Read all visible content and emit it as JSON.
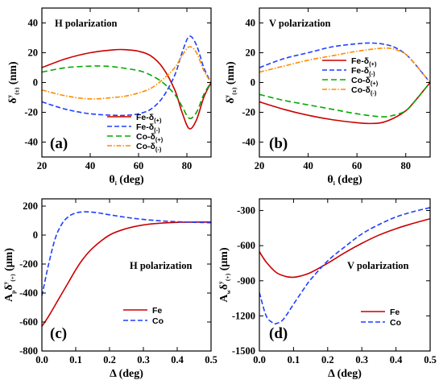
{
  "chart_data": [
    {
      "type": "line",
      "panel_label": "(a)",
      "annotation": "H polarization",
      "xlabel": "θi (deg)",
      "ylabel": "δy(±) (nm)",
      "xlim": [
        20,
        90
      ],
      "ylim": [
        -50,
        50
      ],
      "xticks": [
        20,
        40,
        60,
        80
      ],
      "yticks": [
        40,
        20,
        0,
        -20,
        -40
      ],
      "legend_position": "bottom-right",
      "series": [
        {
          "name": "Fe-δ(+)",
          "color": "#cc0000",
          "dash": "solid",
          "x": [
            20,
            30,
            40,
            50,
            55,
            60,
            65,
            70,
            75,
            78,
            81,
            84,
            87,
            90
          ],
          "y": [
            10,
            16,
            20,
            22,
            22,
            21,
            18,
            10,
            -5,
            -20,
            -31,
            -25,
            -10,
            0
          ]
        },
        {
          "name": "Fe-δ(-)",
          "color": "#1f3fff",
          "dash": "dashed",
          "x": [
            20,
            30,
            40,
            50,
            55,
            60,
            65,
            70,
            75,
            78,
            81,
            84,
            87,
            90
          ],
          "y": [
            -13,
            -18,
            -21,
            -22,
            -22,
            -21,
            -18,
            -10,
            5,
            20,
            31,
            25,
            10,
            0
          ]
        },
        {
          "name": "Co-δ(+)",
          "color": "#00aa00",
          "dash": "dash",
          "x": [
            20,
            30,
            40,
            45,
            50,
            60,
            65,
            70,
            75,
            78,
            81,
            84,
            87,
            90
          ],
          "y": [
            7,
            10,
            11,
            11,
            10.5,
            8,
            5,
            0,
            -8,
            -16,
            -24,
            -20,
            -8,
            0
          ]
        },
        {
          "name": "Co-δ(-)",
          "color": "#ff8c00",
          "dash": "dashdot",
          "x": [
            20,
            30,
            40,
            50,
            55,
            60,
            65,
            70,
            75,
            78,
            81,
            84,
            87,
            90
          ],
          "y": [
            -5,
            -9,
            -11,
            -10,
            -9,
            -7,
            -4,
            2,
            10,
            18,
            24,
            20,
            8,
            0
          ]
        }
      ]
    },
    {
      "type": "line",
      "panel_label": "(b)",
      "annotation": "V polarization",
      "xlabel": "θi (deg)",
      "ylabel": "δy(±) (nm)",
      "xlim": [
        20,
        90
      ],
      "ylim": [
        -50,
        50
      ],
      "xticks": [
        20,
        40,
        60,
        80
      ],
      "yticks": [
        40,
        20,
        0,
        -20,
        -40
      ],
      "legend_position": "upper-right",
      "series": [
        {
          "name": "Fe-δ(+)",
          "color": "#cc0000",
          "dash": "solid",
          "x": [
            20,
            30,
            40,
            50,
            60,
            65,
            70,
            75,
            80,
            84,
            87,
            90
          ],
          "y": [
            -13,
            -18,
            -22,
            -25,
            -27,
            -27.5,
            -27,
            -24,
            -19,
            -12,
            -6,
            0
          ]
        },
        {
          "name": "Fe-δ(-)",
          "color": "#1f3fff",
          "dash": "dashed",
          "x": [
            20,
            30,
            40,
            50,
            60,
            65,
            70,
            75,
            80,
            84,
            87,
            90
          ],
          "y": [
            10,
            16,
            20,
            24,
            26,
            26.5,
            26,
            24,
            19,
            12,
            6,
            0
          ]
        },
        {
          "name": "Co-δ(+)",
          "color": "#00aa00",
          "dash": "dash",
          "x": [
            20,
            30,
            40,
            50,
            60,
            70,
            75,
            80,
            84,
            87,
            90
          ],
          "y": [
            -8,
            -12,
            -15,
            -18,
            -21,
            -23,
            -22,
            -19,
            -12,
            -6,
            0
          ]
        },
        {
          "name": "Co-δ(-)",
          "color": "#ff8c00",
          "dash": "dashdot",
          "x": [
            20,
            30,
            40,
            50,
            60,
            70,
            75,
            80,
            84,
            87,
            90
          ],
          "y": [
            7,
            11,
            15,
            18,
            21,
            23,
            22.5,
            19,
            12,
            6,
            0
          ]
        }
      ]
    },
    {
      "type": "line",
      "panel_label": "(c)",
      "annotation": "H polarization",
      "xlabel": "Δ (deg)",
      "ylabel": "Ap δy(+) (μm)",
      "xlim": [
        0,
        0.5
      ],
      "ylim": [
        -800,
        250
      ],
      "xticks": [
        0.0,
        0.1,
        0.2,
        0.3,
        0.4,
        0.5
      ],
      "yticks": [
        200,
        0,
        -200,
        -400,
        -600,
        -800
      ],
      "legend_position": "lower-right",
      "series": [
        {
          "name": "Fe",
          "color": "#cc0000",
          "dash": "solid",
          "x": [
            0,
            0.02,
            0.05,
            0.08,
            0.1,
            0.12,
            0.15,
            0.2,
            0.25,
            0.3,
            0.35,
            0.4,
            0.45,
            0.5
          ],
          "y": [
            -630,
            -560,
            -440,
            -320,
            -240,
            -170,
            -90,
            0,
            45,
            70,
            82,
            88,
            90,
            90
          ]
        },
        {
          "name": "Co",
          "color": "#1f3fff",
          "dash": "dashed",
          "x": [
            0,
            0.02,
            0.04,
            0.06,
            0.08,
            0.1,
            0.12,
            0.14,
            0.17,
            0.2,
            0.25,
            0.3,
            0.35,
            0.4,
            0.45,
            0.5
          ],
          "y": [
            -420,
            -200,
            -20,
            80,
            130,
            152,
            160,
            160,
            152,
            140,
            122,
            108,
            98,
            92,
            88,
            85
          ]
        }
      ]
    },
    {
      "type": "line",
      "panel_label": "(d)",
      "annotation": "V polarization",
      "xlabel": "Δ (deg)",
      "ylabel": "Aw δy(+) (μm)",
      "xlim": [
        0,
        0.5
      ],
      "ylim": [
        -1500,
        -200
      ],
      "xticks": [
        0.0,
        0.1,
        0.2,
        0.3,
        0.4,
        0.5
      ],
      "yticks": [
        -300,
        -600,
        -900,
        -1200,
        -1500
      ],
      "legend_position": "lower-right",
      "series": [
        {
          "name": "Fe",
          "color": "#cc0000",
          "dash": "solid",
          "x": [
            0,
            0.02,
            0.05,
            0.08,
            0.1,
            0.12,
            0.15,
            0.2,
            0.25,
            0.3,
            0.35,
            0.4,
            0.45,
            0.5
          ],
          "y": [
            -650,
            -740,
            -830,
            -865,
            -870,
            -860,
            -830,
            -750,
            -660,
            -580,
            -510,
            -455,
            -410,
            -370
          ]
        },
        {
          "name": "Co",
          "color": "#1f3fff",
          "dash": "dashed",
          "x": [
            0,
            0.02,
            0.04,
            0.05,
            0.07,
            0.1,
            0.13,
            0.15,
            0.2,
            0.25,
            0.3,
            0.35,
            0.4,
            0.45,
            0.5
          ],
          "y": [
            -1000,
            -1200,
            -1260,
            -1265,
            -1230,
            -1100,
            -970,
            -890,
            -730,
            -610,
            -500,
            -420,
            -355,
            -310,
            -275
          ]
        }
      ]
    }
  ]
}
